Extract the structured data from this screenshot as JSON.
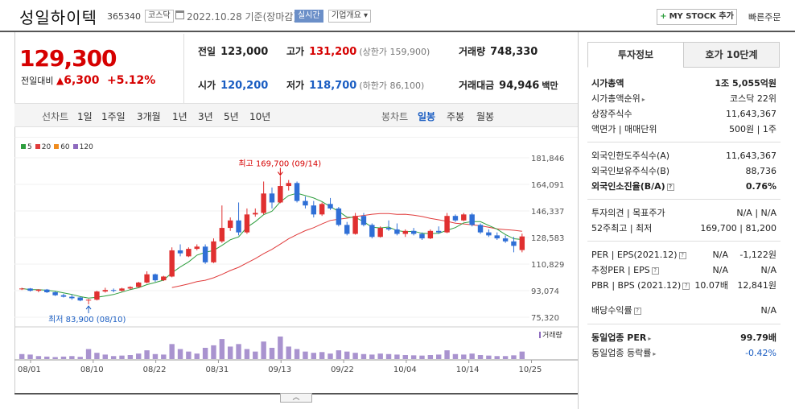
{
  "header": {
    "name": "성일하이텍",
    "code": "365340",
    "market": "코스닥",
    "date": "2022.10.28 기준(장마감)",
    "realtime": "실시간",
    "company_info": "기업개요",
    "my_stock": "MY STOCK 추가",
    "quick_order": "빠른주문"
  },
  "summary": {
    "price": "129,300",
    "change_label": "전일대비",
    "change": "6,300",
    "change_pct": "+5.12%",
    "prev_label": "전일",
    "prev": "123,000",
    "high_label": "고가",
    "high": "131,200",
    "upper_limit": "(상한가 159,900)",
    "volume_label": "거래량",
    "volume": "748,330",
    "open_label": "시가",
    "open": "120,200",
    "low_label": "저가",
    "low": "118,700",
    "lower_limit": "(하한가 86,100)",
    "amount_label": "거래대금",
    "amount": "94,946",
    "amount_unit": "백만"
  },
  "periods": {
    "line_label": "선차트",
    "items": [
      "1일",
      "1주일",
      "3개월",
      "1년",
      "3년",
      "5년",
      "10년"
    ],
    "candle_label": "봉차트",
    "candle_items": [
      "일봉",
      "주봉",
      "월봉"
    ],
    "selected": "일봉"
  },
  "chart_data": {
    "type": "candlestick",
    "ma_legend": [
      {
        "name": "5",
        "color": "#2e9e3e"
      },
      {
        "name": "20",
        "color": "#e03c3c"
      },
      {
        "name": "60",
        "color": "#f08c1e"
      },
      {
        "name": "120",
        "color": "#8e6bbf"
      }
    ],
    "volume_label": "거래량",
    "y_ticks": [
      "181,846",
      "164,091",
      "146,337",
      "128,583",
      "110,829",
      "93,074",
      "75,320"
    ],
    "ylim": [
      75320,
      181846
    ],
    "x_ticks": [
      "08/01",
      "08/10",
      "08/22",
      "08/31",
      "09/13",
      "09/22",
      "10/04",
      "10/14",
      "10/25"
    ],
    "high_annotation": "최고 169,700 (09/14)",
    "low_annotation": "최저 83,900 (08/10)",
    "candles": [
      [
        94000,
        95000,
        93500,
        94500
      ],
      [
        94500,
        94800,
        92500,
        93000
      ],
      [
        93000,
        94000,
        92000,
        93800
      ],
      [
        93800,
        94200,
        91500,
        92000
      ],
      [
        92000,
        92500,
        89500,
        90000
      ],
      [
        90000,
        91000,
        88500,
        89000
      ],
      [
        89000,
        90500,
        87000,
        88000
      ],
      [
        88500,
        89000,
        86000,
        86500
      ],
      [
        86500,
        87500,
        83900,
        87000
      ],
      [
        87000,
        93000,
        86500,
        92500
      ],
      [
        92500,
        95000,
        91800,
        93500
      ],
      [
        93500,
        94500,
        92000,
        93000
      ],
      [
        93000,
        95000,
        92500,
        94500
      ],
      [
        94500,
        96000,
        93800,
        95500
      ],
      [
        95500,
        99000,
        95000,
        98500
      ],
      [
        98500,
        106000,
        98000,
        104000
      ],
      [
        104000,
        104500,
        99000,
        100000
      ],
      [
        100000,
        103000,
        99500,
        102500
      ],
      [
        102500,
        122000,
        102000,
        120000
      ],
      [
        120000,
        124000,
        116000,
        118000
      ],
      [
        116000,
        122000,
        115500,
        121000
      ],
      [
        121000,
        124000,
        120000,
        122500
      ],
      [
        122500,
        124000,
        111000,
        112000
      ],
      [
        112000,
        128000,
        111500,
        126000
      ],
      [
        126000,
        150000,
        125000,
        135000
      ],
      [
        135000,
        142000,
        133000,
        140000
      ],
      [
        140000,
        152000,
        130000,
        132000
      ],
      [
        132000,
        148000,
        131000,
        144000
      ],
      [
        144000,
        148000,
        142500,
        145000
      ],
      [
        145000,
        166000,
        144000,
        158000
      ],
      [
        158000,
        162000,
        148000,
        152000
      ],
      [
        152000,
        169700,
        151500,
        163000
      ],
      [
        163000,
        167000,
        160000,
        165000
      ],
      [
        165000,
        166000,
        152000,
        153000
      ],
      [
        153000,
        156000,
        148000,
        150000
      ],
      [
        150000,
        153000,
        142000,
        144000
      ],
      [
        144000,
        152000,
        143000,
        151000
      ],
      [
        151000,
        155000,
        147000,
        148000
      ],
      [
        148000,
        149000,
        136000,
        137000
      ],
      [
        137000,
        139000,
        130000,
        131000
      ],
      [
        131000,
        145000,
        130500,
        143000
      ],
      [
        143000,
        145000,
        136000,
        137000
      ],
      [
        137000,
        138000,
        128000,
        129000
      ],
      [
        129000,
        136000,
        128500,
        135000
      ],
      [
        135000,
        140000,
        133000,
        134000
      ],
      [
        134000,
        138000,
        130000,
        131000
      ],
      [
        131000,
        134000,
        129000,
        133000
      ],
      [
        133000,
        135000,
        130000,
        131000
      ],
      [
        131000,
        132000,
        127000,
        128000
      ],
      [
        128000,
        134000,
        127500,
        133000
      ],
      [
        133000,
        136000,
        131000,
        132000
      ],
      [
        132000,
        145000,
        131500,
        143000
      ],
      [
        143000,
        144000,
        139000,
        140000
      ],
      [
        140000,
        145000,
        139500,
        144000
      ],
      [
        144000,
        145000,
        136000,
        137000
      ],
      [
        137000,
        138000,
        131000,
        132000
      ],
      [
        132000,
        134000,
        129000,
        130000
      ],
      [
        130000,
        132000,
        127000,
        128000
      ],
      [
        128000,
        130000,
        125000,
        126000
      ],
      [
        126000,
        129000,
        118700,
        123000
      ],
      [
        120200,
        131200,
        118700,
        129300
      ]
    ],
    "volumes": [
      20,
      18,
      12,
      10,
      8,
      10,
      12,
      9,
      40,
      25,
      18,
      12,
      14,
      16,
      22,
      35,
      20,
      18,
      60,
      40,
      30,
      22,
      45,
      55,
      80,
      50,
      60,
      40,
      30,
      70,
      45,
      90,
      50,
      40,
      30,
      25,
      28,
      22,
      35,
      30,
      25,
      20,
      18,
      22,
      20,
      18,
      16,
      15,
      14,
      16,
      18,
      35,
      20,
      18,
      22,
      16,
      14,
      12,
      12,
      15,
      30
    ]
  },
  "panel": {
    "tab_invest": "투자정보",
    "tab_quote": "호가 10단계",
    "rows1": [
      {
        "k": "시가총액",
        "v": "1조 5,055억원",
        "bold": true
      },
      {
        "k": "시가총액순위",
        "v": "코스닥 22위"
      },
      {
        "k": "상장주식수",
        "v": "11,643,367"
      },
      {
        "k": "액면가 | 매매단위",
        "v": "500원 | 1주"
      }
    ],
    "rows2": [
      {
        "k": "외국인한도주식수(A)",
        "v": "11,643,367"
      },
      {
        "k": "외국인보유주식수(B)",
        "v": "88,736"
      },
      {
        "k": "외국인소진율(B/A)",
        "v": "0.76%",
        "bold": true
      }
    ],
    "opinion_label": "투자의견 | 목표주가",
    "opinion": "N/A | N/A",
    "week52_label": "52주최고 | 최저",
    "week52": "169,700 | 81,200",
    "per_label": "PER | EPS(2021.12)",
    "per": "N/A",
    "eps": "-1,122원",
    "eper_label": "추정PER | EPS",
    "eper": "N/A",
    "eeps": "N/A",
    "pbr_label": "PBR | BPS (2021.12)",
    "pbr": "10.07배",
    "bps": "12,841원",
    "div_label": "배당수익률",
    "div": "N/A",
    "ind_per_label": "동일업종 PER",
    "ind_per": "99.79배",
    "ind_rate_label": "동일업종 등락률",
    "ind_rate": "-0.42%"
  }
}
